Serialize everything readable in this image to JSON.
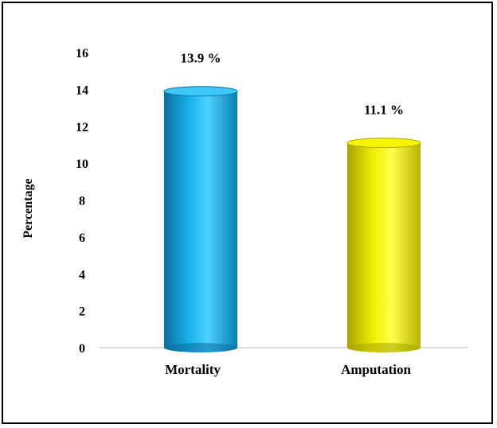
{
  "chart_data": {
    "type": "bar",
    "title": "",
    "xlabel": "",
    "ylabel": "Percentage",
    "ylim": [
      0,
      16
    ],
    "yticks": [
      0,
      2,
      4,
      6,
      8,
      10,
      12,
      14,
      16
    ],
    "categories": [
      "Mortality",
      "Amputation"
    ],
    "values": [
      13.9,
      11.1
    ],
    "data_labels": [
      "13.9 %",
      "11.1 %"
    ],
    "colors": [
      "#1eaee6",
      "#f2f000"
    ],
    "style": "3d-cylinder",
    "grid": false,
    "legend": "none"
  }
}
